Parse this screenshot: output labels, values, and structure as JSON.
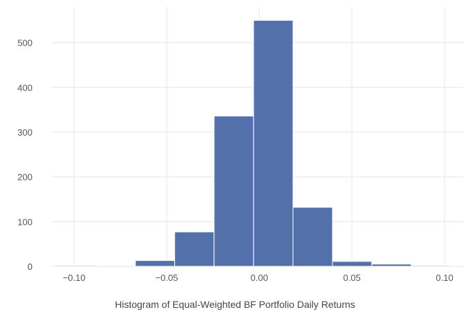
{
  "chart_data": {
    "type": "bar",
    "title": "",
    "caption": "Histogram of Equal-Weighted BF Portfolio Daily Returns",
    "xlabel": "",
    "ylabel": "",
    "bin_edges": [
      -0.1095,
      -0.0882,
      -0.0669,
      -0.0457,
      -0.0244,
      -0.0031,
      0.0182,
      0.0395,
      0.0607,
      0.082,
      0.1033
    ],
    "values": [
      2,
      0,
      13,
      77,
      336,
      550,
      132,
      11,
      5,
      2
    ],
    "xlim": [
      -0.112,
      0.11
    ],
    "ylim": [
      0,
      580
    ],
    "x_ticks": [
      -0.1,
      -0.05,
      0.0,
      0.05,
      0.1
    ],
    "x_tick_labels": [
      "−0.10",
      "−0.05",
      "0.00",
      "0.05",
      "0.10"
    ],
    "y_ticks": [
      0,
      100,
      200,
      300,
      400,
      500
    ],
    "y_tick_labels": [
      "0",
      "100",
      "200",
      "300",
      "400",
      "500"
    ],
    "grid": true,
    "legend": "none"
  },
  "colors": {
    "bar_fill": "#5470ab",
    "grid": "#e6e6e6",
    "text": "#555555"
  }
}
